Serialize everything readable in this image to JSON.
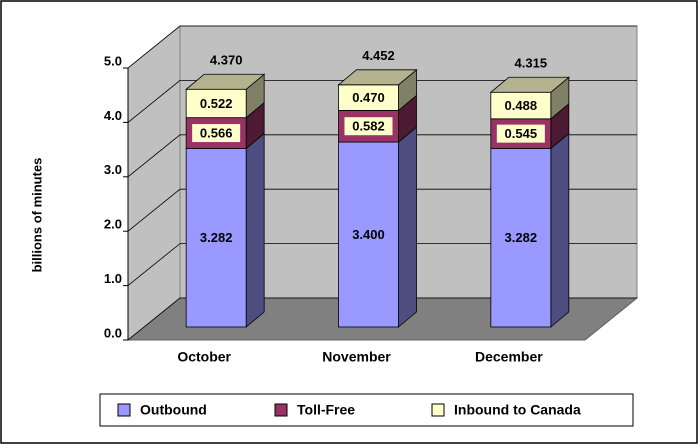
{
  "chart_data": {
    "type": "bar3d-stacked",
    "ylabel": "billions of minutes",
    "categories": [
      "October",
      "November",
      "December"
    ],
    "series": [
      {
        "name": "Outbound",
        "color": "#9999ff",
        "values": [
          3.282,
          3.4,
          3.282
        ],
        "value_labels": [
          "3.282",
          "3.400",
          "3.282"
        ]
      },
      {
        "name": "Toll-Free",
        "color": "#993366",
        "values": [
          0.566,
          0.582,
          0.545
        ],
        "value_labels": [
          "0.566",
          "0.582",
          "0.545"
        ]
      },
      {
        "name": "Inbound to Canada",
        "color": "#ffffcc",
        "values": [
          0.522,
          0.47,
          0.488
        ],
        "value_labels": [
          "0.522",
          "0.470",
          "0.488"
        ]
      }
    ],
    "totals": [
      4.37,
      4.452,
      4.315
    ],
    "total_labels": [
      "4.370",
      "4.452",
      "4.315"
    ],
    "ylim": [
      0,
      5
    ],
    "yticks": [
      {
        "value": 0,
        "label": "0.0"
      },
      {
        "value": 1,
        "label": "1.0"
      },
      {
        "value": 2,
        "label": "2.0"
      },
      {
        "value": 3,
        "label": "3.0"
      },
      {
        "value": 4,
        "label": "4.0"
      },
      {
        "value": 5,
        "label": "5.0"
      }
    ],
    "grid": true
  }
}
